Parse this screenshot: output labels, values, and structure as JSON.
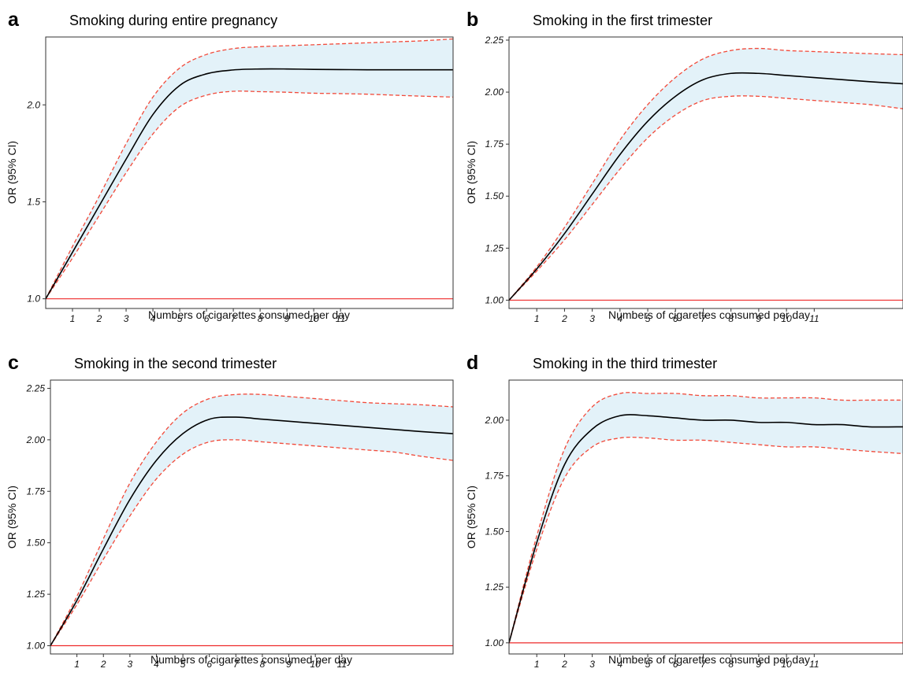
{
  "chart_data": [
    {
      "type": "line",
      "panel_label": "a",
      "title": "Smoking during entire pregnancy",
      "xlabel": "Numbers of cigarettes consumed per day",
      "ylabel": "OR (95% CI)",
      "xlim": [
        0,
        15.2
      ],
      "ylim": [
        0.95,
        2.35
      ],
      "x_ticks": [
        1,
        2,
        3,
        4,
        5,
        6,
        7,
        8,
        9,
        10,
        11
      ],
      "x_tick_labels": [
        "1",
        "2",
        "3",
        "4",
        "5",
        "6",
        "7",
        "8",
        "9",
        "10",
        "11"
      ],
      "y_ticks": [
        1.0,
        1.5,
        2.0
      ],
      "y_tick_labels": [
        "1.0",
        "1.5",
        "2.0"
      ],
      "reference_line": 1.0,
      "ci_fill_color": "#e3f2f9",
      "ci_line_color": "#f24a3a",
      "reference_color": "#ee2a2a",
      "estimate_color": "#000000",
      "x": [
        0,
        1,
        2,
        3,
        4,
        5,
        6,
        7,
        8,
        9,
        10,
        11,
        12,
        13,
        14,
        15.2
      ],
      "or": [
        1.0,
        1.24,
        1.48,
        1.72,
        1.95,
        2.1,
        2.16,
        2.18,
        2.185,
        2.185,
        2.183,
        2.182,
        2.181,
        2.181,
        2.181,
        2.181
      ],
      "lower": [
        1.0,
        1.21,
        1.43,
        1.65,
        1.85,
        1.99,
        2.05,
        2.07,
        2.068,
        2.065,
        2.06,
        2.058,
        2.055,
        2.05,
        2.045,
        2.04
      ],
      "upper": [
        1.0,
        1.27,
        1.53,
        1.8,
        2.04,
        2.19,
        2.26,
        2.29,
        2.3,
        2.305,
        2.31,
        2.315,
        2.32,
        2.325,
        2.33,
        2.34
      ]
    },
    {
      "type": "line",
      "panel_label": "b",
      "title": "Smoking in the first trimester",
      "xlabel": "Numbers of cigarettes consumed per day",
      "ylabel": "OR (95% CI)",
      "xlim": [
        0,
        14.2
      ],
      "ylim": [
        0.96,
        2.265
      ],
      "x_ticks": [
        1,
        2,
        3,
        4,
        5,
        6,
        7,
        8,
        9,
        10,
        11
      ],
      "x_tick_labels": [
        "1",
        "2",
        "3",
        "4",
        "5",
        "6",
        "7",
        "8",
        "9",
        "10",
        "11"
      ],
      "y_ticks": [
        1.0,
        1.25,
        1.5,
        1.75,
        2.0,
        2.25
      ],
      "y_tick_labels": [
        "1.00",
        "1.25",
        "1.50",
        "1.75",
        "2.00",
        "2.25"
      ],
      "reference_line": 1.0,
      "ci_fill_color": "#e3f2f9",
      "ci_line_color": "#f24a3a",
      "reference_color": "#ee2a2a",
      "estimate_color": "#000000",
      "x": [
        0,
        1,
        2,
        3,
        4,
        5,
        6,
        7,
        8,
        9,
        10,
        11,
        12,
        13,
        14.2
      ],
      "or": [
        1.0,
        1.15,
        1.32,
        1.51,
        1.7,
        1.86,
        1.98,
        2.06,
        2.09,
        2.09,
        2.08,
        2.07,
        2.06,
        2.05,
        2.04
      ],
      "lower": [
        1.0,
        1.14,
        1.29,
        1.46,
        1.63,
        1.78,
        1.89,
        1.96,
        1.98,
        1.98,
        1.97,
        1.96,
        1.95,
        1.94,
        1.92
      ],
      "upper": [
        1.0,
        1.16,
        1.35,
        1.56,
        1.77,
        1.94,
        2.07,
        2.16,
        2.2,
        2.21,
        2.2,
        2.195,
        2.19,
        2.185,
        2.18
      ]
    },
    {
      "type": "line",
      "panel_label": "c",
      "title": "Smoking in the second trimester",
      "xlabel": "Numbers of cigarettes consumed per day",
      "ylabel": "OR (95% CI)",
      "xlim": [
        0,
        15.2
      ],
      "ylim": [
        0.96,
        2.29
      ],
      "x_ticks": [
        1,
        2,
        3,
        4,
        5,
        6,
        7,
        8,
        9,
        10,
        11
      ],
      "x_tick_labels": [
        "1",
        "2",
        "3",
        "4",
        "5",
        "6",
        "7",
        "8",
        "9",
        "10",
        "11"
      ],
      "y_ticks": [
        1.0,
        1.25,
        1.5,
        1.75,
        2.0,
        2.25
      ],
      "y_tick_labels": [
        "1.00",
        "1.25",
        "1.50",
        "1.75",
        "2.00",
        "2.25"
      ],
      "reference_line": 1.0,
      "ci_fill_color": "#e3f2f9",
      "ci_line_color": "#f24a3a",
      "reference_color": "#ee2a2a",
      "estimate_color": "#000000",
      "x": [
        0,
        1,
        2,
        3,
        4,
        5,
        6,
        7,
        8,
        9,
        10,
        11,
        12,
        13,
        14,
        15.2
      ],
      "or": [
        1.0,
        1.22,
        1.47,
        1.71,
        1.9,
        2.03,
        2.1,
        2.11,
        2.1,
        2.09,
        2.08,
        2.07,
        2.06,
        2.05,
        2.04,
        2.03
      ],
      "lower": [
        1.0,
        1.2,
        1.42,
        1.63,
        1.81,
        1.93,
        1.99,
        2.0,
        1.99,
        1.98,
        1.97,
        1.96,
        1.95,
        1.94,
        1.92,
        1.9
      ],
      "upper": [
        1.0,
        1.24,
        1.52,
        1.79,
        1.99,
        2.13,
        2.2,
        2.22,
        2.22,
        2.21,
        2.2,
        2.19,
        2.18,
        2.175,
        2.17,
        2.16
      ]
    },
    {
      "type": "line",
      "panel_label": "d",
      "title": "Smoking in the third trimester",
      "xlabel": "Numbers of cigarettes consumed per day",
      "ylabel": "OR (95% CI)",
      "xlim": [
        0,
        14.2
      ],
      "ylim": [
        0.95,
        2.18
      ],
      "x_ticks": [
        1,
        2,
        3,
        4,
        5,
        6,
        7,
        8,
        9,
        10,
        11
      ],
      "x_tick_labels": [
        "1",
        "2",
        "3",
        "4",
        "5",
        "6",
        "7",
        "8",
        "9",
        "10",
        "11"
      ],
      "y_ticks": [
        1.0,
        1.25,
        1.5,
        1.75,
        2.0
      ],
      "y_tick_labels": [
        "1.00",
        "1.25",
        "1.50",
        "1.75",
        "2.00"
      ],
      "reference_line": 1.0,
      "ci_fill_color": "#e3f2f9",
      "ci_line_color": "#f24a3a",
      "reference_color": "#ee2a2a",
      "estimate_color": "#000000",
      "x": [
        0,
        1,
        2,
        3,
        4,
        5,
        6,
        7,
        8,
        9,
        10,
        11,
        12,
        13,
        14.2
      ],
      "or": [
        1.0,
        1.45,
        1.8,
        1.96,
        2.02,
        2.02,
        2.01,
        2.0,
        2.0,
        1.99,
        1.99,
        1.98,
        1.98,
        1.97,
        1.97
      ],
      "lower": [
        1.0,
        1.42,
        1.74,
        1.88,
        1.92,
        1.92,
        1.91,
        1.91,
        1.9,
        1.89,
        1.88,
        1.88,
        1.87,
        1.86,
        1.85
      ],
      "upper": [
        1.0,
        1.48,
        1.87,
        2.06,
        2.12,
        2.12,
        2.12,
        2.11,
        2.11,
        2.1,
        2.1,
        2.1,
        2.09,
        2.09,
        2.09
      ]
    }
  ]
}
